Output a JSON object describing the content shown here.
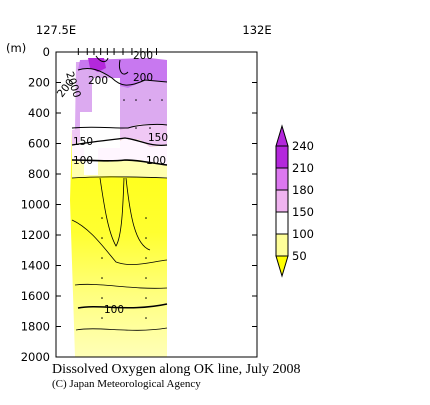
{
  "chart_data": {
    "type": "heatmap",
    "title": "Dissolved Oxygen along OK line, July 2008",
    "credit": "(C) Japan Meteorological Agency",
    "x_axis": {
      "range": [
        127.5,
        132.0
      ],
      "tick_labels": [
        {
          "value": 127.5,
          "label": "127.5E"
        },
        {
          "value": 132.0,
          "label": "132E"
        }
      ],
      "station_longitudes": [
        128.0,
        128.2,
        128.35,
        128.5,
        128.65,
        128.8,
        129.0,
        129.2,
        129.4,
        129.55,
        129.75
      ]
    },
    "y_axis": {
      "unit_label": "(m)",
      "range": [
        0,
        2000
      ],
      "inverted": true,
      "ticks": [
        0,
        200,
        400,
        600,
        800,
        1000,
        1200,
        1400,
        1600,
        1800,
        2000
      ]
    },
    "colorbar": {
      "levels": [
        50,
        100,
        150,
        180,
        210,
        240
      ],
      "tick_labels": [
        "50",
        "100",
        "150",
        "180",
        "210",
        "240"
      ],
      "colors": [
        "#ffff00",
        "#ffff99",
        "#ffffff",
        "#f0b4f0",
        "#dc78f0",
        "#b428dc"
      ],
      "extend": "both"
    },
    "contour_labels": [
      "200",
      "200",
      "200",
      "2000",
      "200",
      "150",
      "150",
      "100",
      "100",
      "100"
    ],
    "data_gaps": [
      "approx. 128.1E–129.0E, 100–600 m",
      "approx. 128.4E–128.5E, 700–850 m"
    ]
  }
}
